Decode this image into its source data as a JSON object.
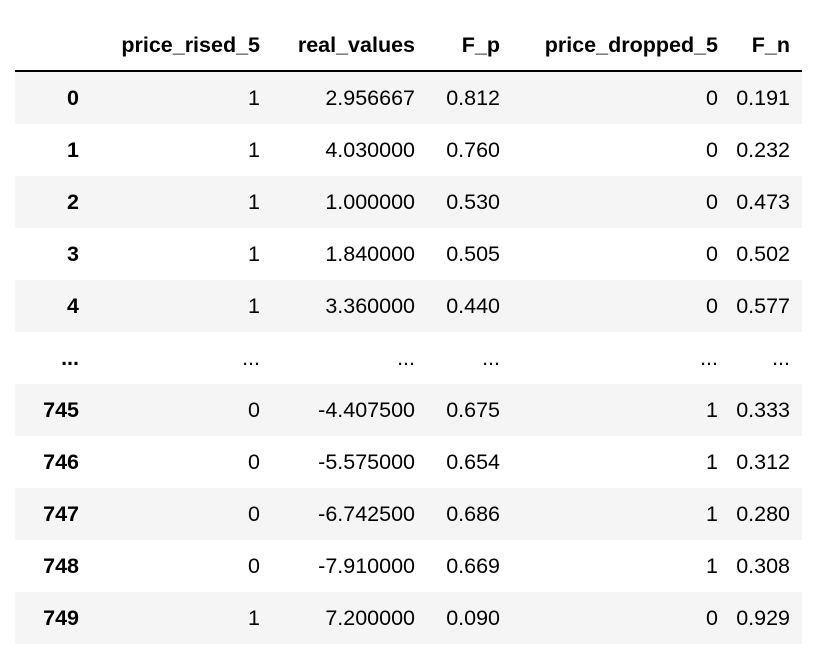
{
  "table": {
    "columns": [
      "",
      "price_rised_5",
      "real_values",
      "F_p",
      "price_dropped_5",
      "F_n"
    ],
    "rows": [
      [
        "0",
        "1",
        "2.956667",
        "0.812",
        "0",
        "0.191"
      ],
      [
        "1",
        "1",
        "4.030000",
        "0.760",
        "0",
        "0.232"
      ],
      [
        "2",
        "1",
        "1.000000",
        "0.530",
        "0",
        "0.473"
      ],
      [
        "3",
        "1",
        "1.840000",
        "0.505",
        "0",
        "0.502"
      ],
      [
        "4",
        "1",
        "3.360000",
        "0.440",
        "0",
        "0.577"
      ],
      [
        "...",
        "...",
        "...",
        "...",
        "...",
        "..."
      ],
      [
        "745",
        "0",
        "-4.407500",
        "0.675",
        "1",
        "0.333"
      ],
      [
        "746",
        "0",
        "-5.575000",
        "0.654",
        "1",
        "0.312"
      ],
      [
        "747",
        "0",
        "-6.742500",
        "0.686",
        "1",
        "0.280"
      ],
      [
        "748",
        "0",
        "-7.910000",
        "0.669",
        "1",
        "0.308"
      ],
      [
        "749",
        "1",
        "7.200000",
        "0.090",
        "0",
        "0.929"
      ]
    ]
  }
}
